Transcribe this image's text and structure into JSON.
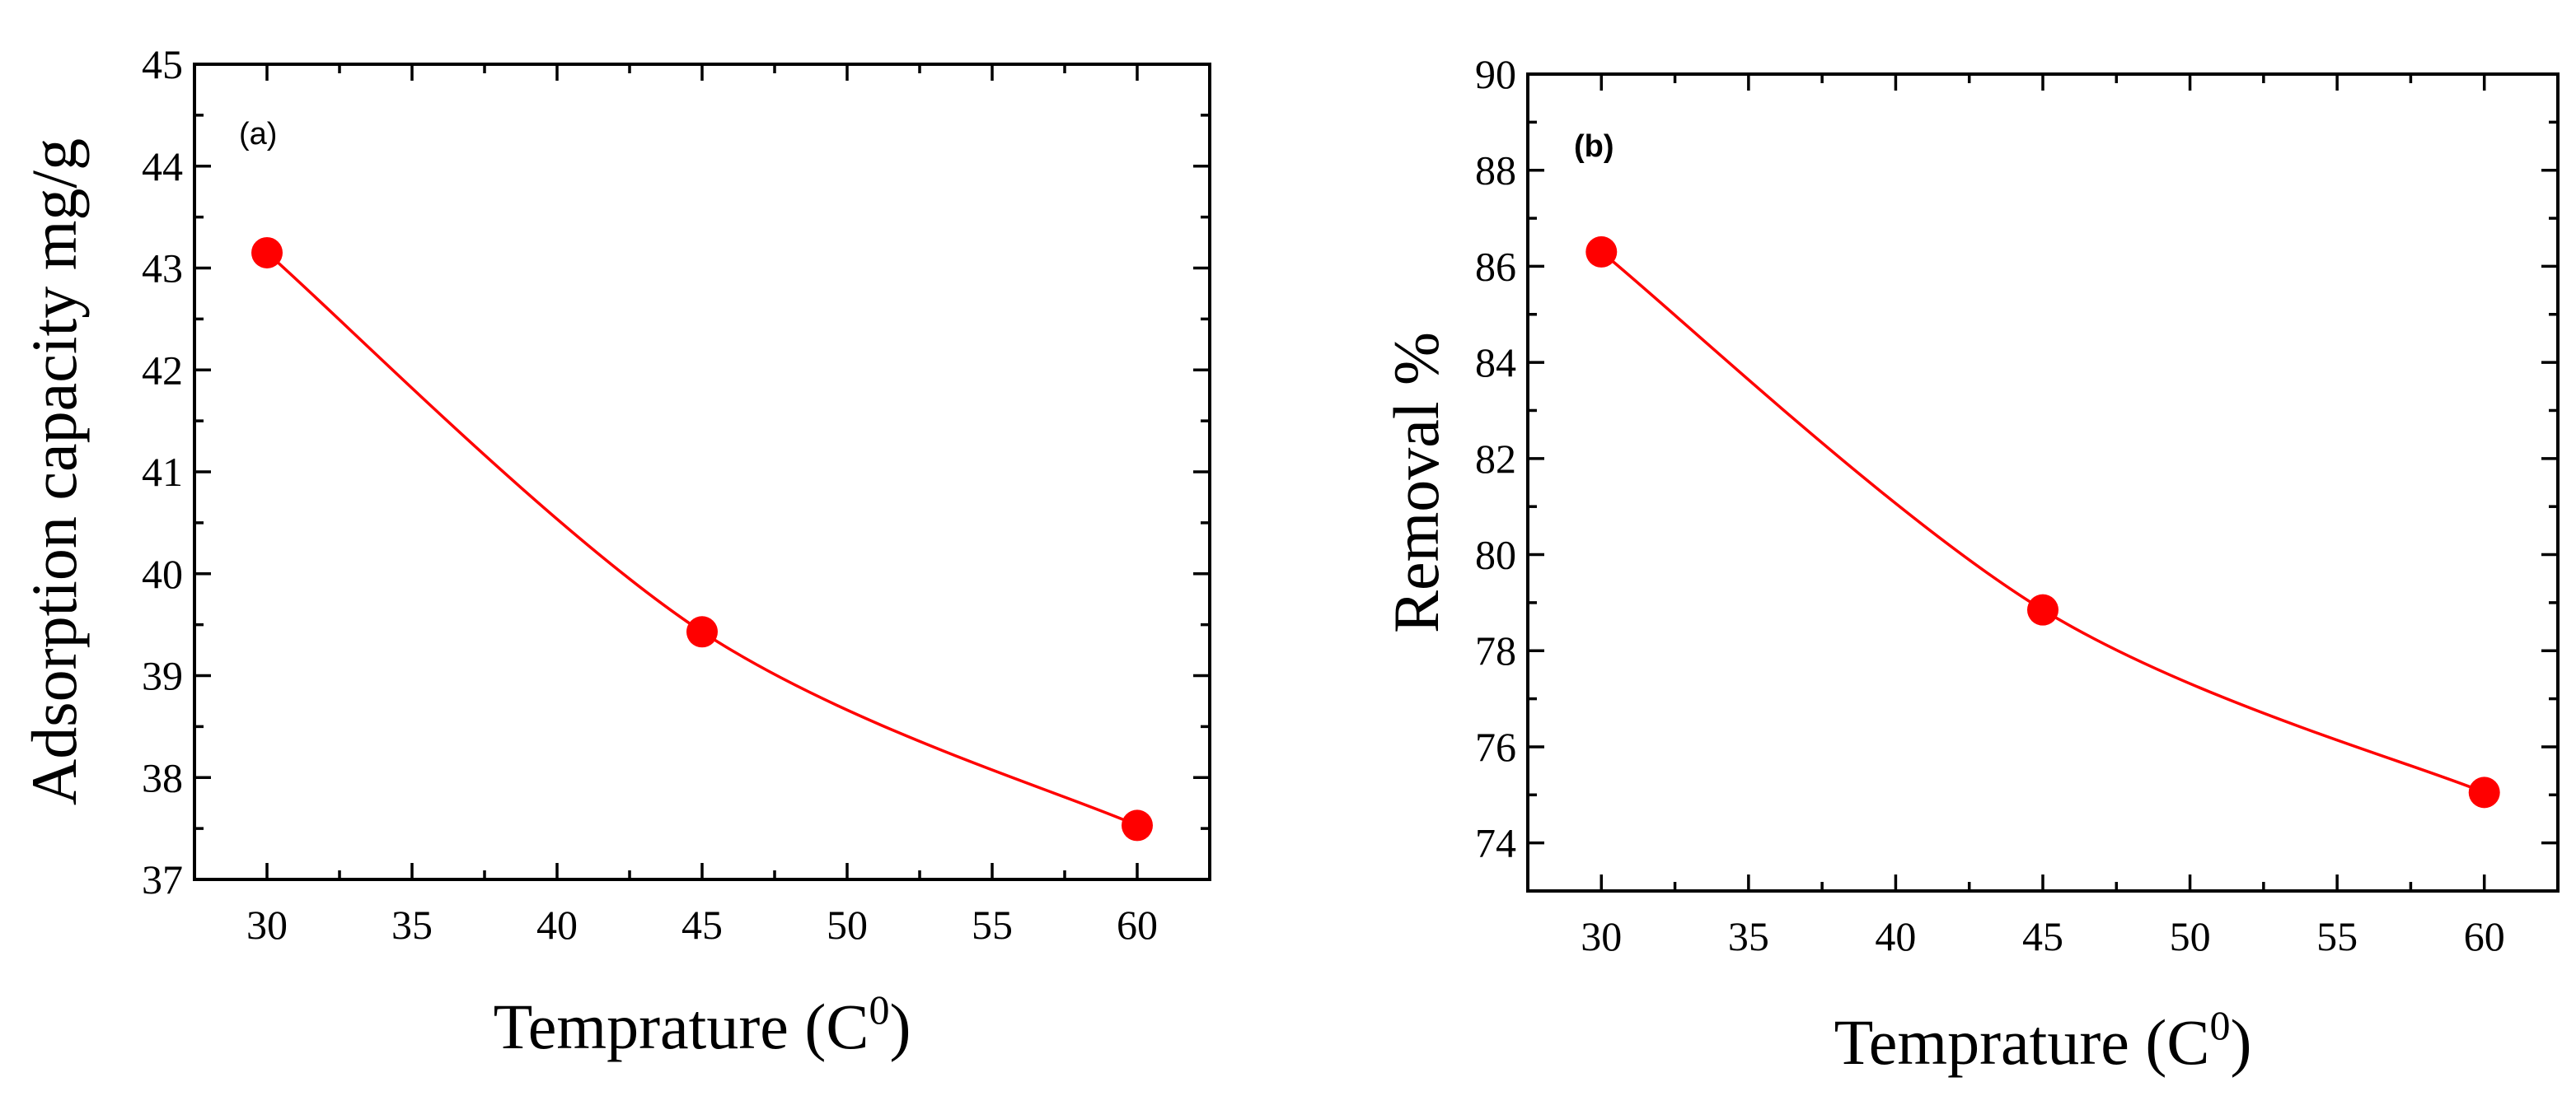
{
  "chart_data": [
    {
      "type": "line",
      "panel_label": "(a)",
      "panel_label_bold": false,
      "x": [
        30,
        45,
        60
      ],
      "series": [
        {
          "name": "Adsorption capacity",
          "values": [
            43.15,
            39.43,
            37.53
          ],
          "color": "#ff0000"
        }
      ],
      "xlabel": "Temprature (C",
      "xlabel_sup": "0",
      "xlabel_close": ")",
      "ylabel": "Adsorption capacity mg/g",
      "xlim": [
        27.5,
        62.5
      ],
      "ylim": [
        37,
        45
      ],
      "xticks": [
        30,
        35,
        40,
        45,
        50,
        55,
        60
      ],
      "yticks": [
        37,
        38,
        39,
        40,
        41,
        42,
        43,
        44,
        45
      ],
      "grid": false,
      "curve": "smooth"
    },
    {
      "type": "line",
      "panel_label": "(b)",
      "panel_label_bold": true,
      "x": [
        30,
        45,
        60
      ],
      "series": [
        {
          "name": "Removal %",
          "values": [
            86.3,
            78.85,
            75.05
          ],
          "color": "#ff0000"
        }
      ],
      "xlabel": "Temprature (C",
      "xlabel_sup": "0",
      "xlabel_close": ")",
      "ylabel": "Removal %",
      "xlim": [
        27.5,
        62.5
      ],
      "ylim": [
        73,
        90
      ],
      "xticks": [
        30,
        35,
        40,
        45,
        50,
        55,
        60
      ],
      "yticks": [
        74,
        76,
        78,
        80,
        82,
        84,
        86,
        88,
        90
      ],
      "grid": false,
      "curve": "smooth"
    }
  ]
}
